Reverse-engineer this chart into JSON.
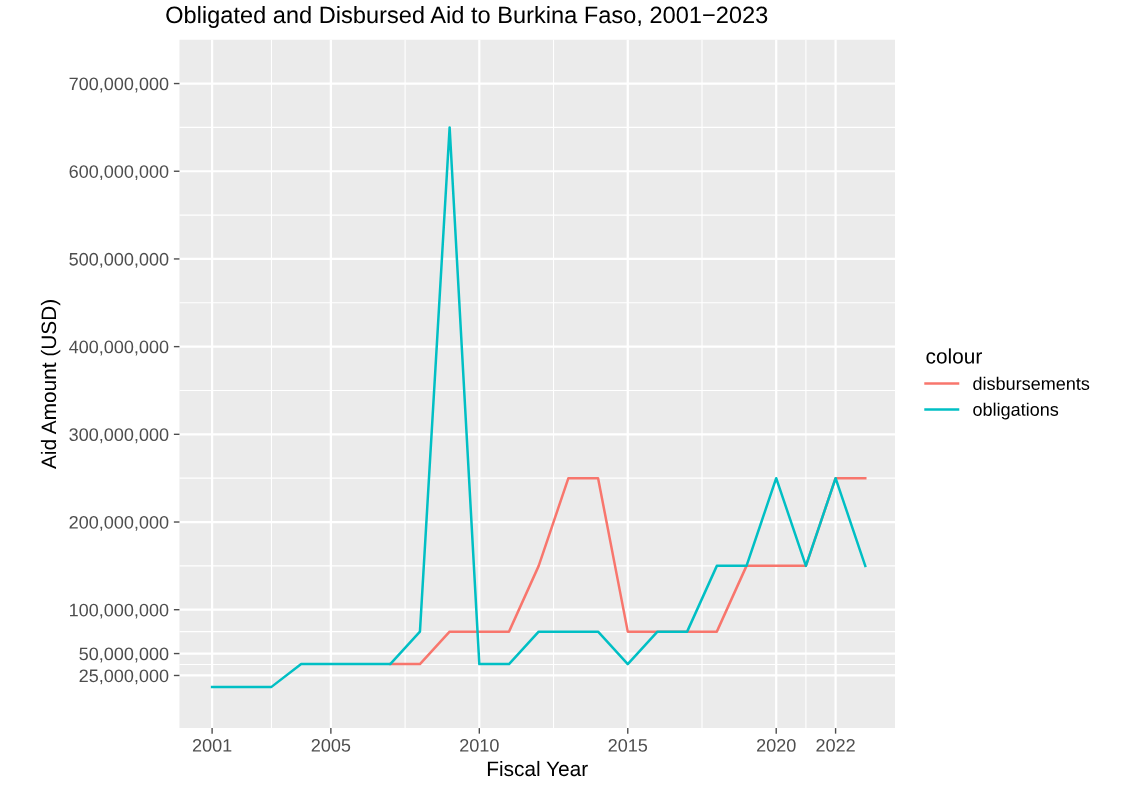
{
  "chart_data": {
    "type": "line",
    "title": "Obligated and Disbursed Aid to Burkina Faso, 2001−2023",
    "xlabel": "Fiscal Year",
    "ylabel": "Aid Amount (USD)",
    "legend_title": "colour",
    "legend": "right",
    "grid": true,
    "x": [
      2001,
      2002,
      2003,
      2004,
      2005,
      2006,
      2007,
      2008,
      2009,
      2010,
      2011,
      2012,
      2013,
      2014,
      2015,
      2016,
      2017,
      2018,
      2019,
      2020,
      2021,
      2022,
      2023
    ],
    "series": [
      {
        "name": "disbursements",
        "color": "#f8766d",
        "values": [
          null,
          null,
          null,
          null,
          null,
          null,
          38000000,
          38000000,
          75000000,
          75000000,
          75000000,
          150000000,
          250000000,
          250000000,
          75000000,
          75000000,
          75000000,
          75000000,
          150000000,
          150000000,
          150000000,
          250000000,
          250000000
        ]
      },
      {
        "name": "obligations",
        "color": "#00bfc4",
        "values": [
          12000000,
          12000000,
          12000000,
          38000000,
          38000000,
          38000000,
          38000000,
          75000000,
          650000000,
          38000000,
          38000000,
          75000000,
          75000000,
          75000000,
          38000000,
          75000000,
          75000000,
          150000000,
          150000000,
          250000000,
          150000000,
          250000000,
          150000000
        ]
      }
    ],
    "xlim": [
      1999.9,
      2024.0
    ],
    "xticks": [
      2001,
      2005,
      2010,
      2015,
      2020,
      2022
    ],
    "ylim": [
      -35000000,
      750000000
    ],
    "yticks": [
      {
        "value": 25000000,
        "label": "25,000,000"
      },
      {
        "value": 50000000,
        "label": "50,000,000"
      },
      {
        "value": 100000000,
        "label": "100,000,000"
      },
      {
        "value": 200000000,
        "label": "200,000,000"
      },
      {
        "value": 300000000,
        "label": "300,000,000"
      },
      {
        "value": 400000000,
        "label": "400,000,000"
      },
      {
        "value": 500000000,
        "label": "500,000,000"
      },
      {
        "value": 600000000,
        "label": "600,000,000"
      },
      {
        "value": 700000000,
        "label": "700,000,000"
      }
    ]
  }
}
